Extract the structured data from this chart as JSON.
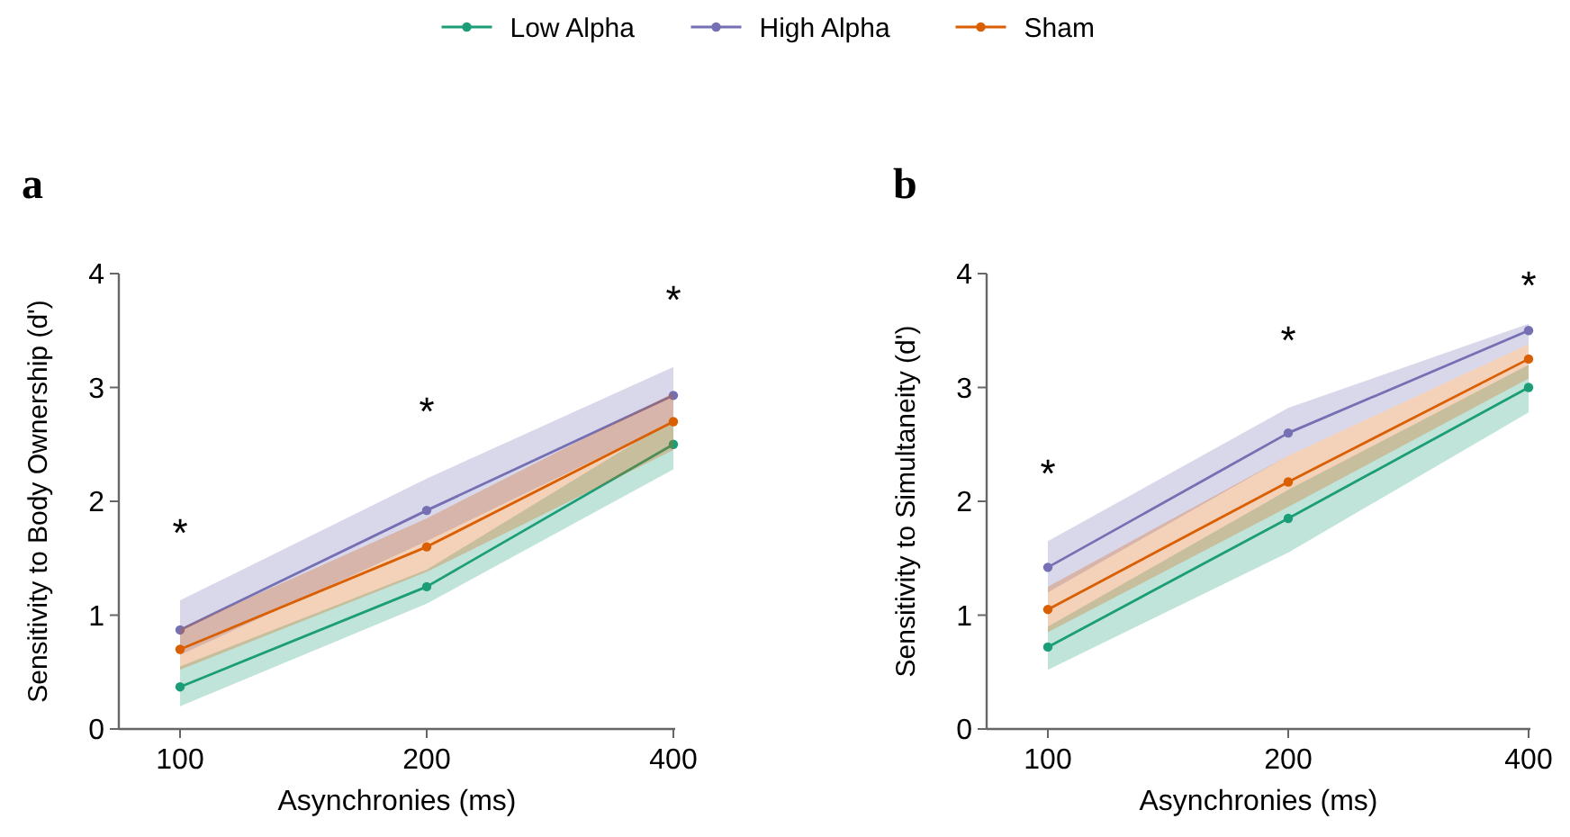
{
  "chart_data": [
    {
      "type": "line",
      "title": "a",
      "xlabel": "Asynchronies (ms)",
      "ylabel": "Sensitivity to Body Ownership (d')",
      "categories": [
        "100",
        "200",
        "400"
      ],
      "ylim": [
        0,
        4
      ],
      "yticks": [
        0,
        1,
        2,
        3,
        4
      ],
      "marker": "circle",
      "legend": "top",
      "grid": false,
      "series": [
        {
          "name": "Low Alpha",
          "color": "#1b9e77",
          "values": [
            0.37,
            1.25,
            2.5
          ],
          "lower": [
            0.2,
            1.1,
            2.28
          ],
          "upper": [
            0.55,
            1.4,
            2.72
          ]
        },
        {
          "name": "High Alpha",
          "color": "#7570b3",
          "values": [
            0.87,
            1.92,
            2.93
          ],
          "lower": [
            0.65,
            1.65,
            2.7
          ],
          "upper": [
            1.13,
            2.2,
            3.18
          ]
        },
        {
          "name": "Sham",
          "color": "#d95f02",
          "values": [
            0.7,
            1.6,
            2.7
          ],
          "lower": [
            0.52,
            1.38,
            2.45
          ],
          "upper": [
            0.88,
            1.85,
            2.95
          ]
        }
      ],
      "annotations": [
        "*",
        "*",
        "*"
      ]
    },
    {
      "type": "line",
      "title": "b",
      "xlabel": "Asynchronies (ms)",
      "ylabel": "Sensitivity to Simultaneity (d')",
      "categories": [
        "100",
        "200",
        "400"
      ],
      "ylim": [
        0,
        4
      ],
      "yticks": [
        0,
        1,
        2,
        3,
        4
      ],
      "marker": "circle",
      "grid": false,
      "series": [
        {
          "color": "#1b9e77",
          "values": [
            0.72,
            1.85,
            3.0
          ],
          "lower": [
            0.52,
            1.55,
            2.78
          ],
          "upper": [
            0.9,
            2.1,
            3.2
          ]
        },
        {
          "color": "#7570b3",
          "values": [
            1.42,
            2.6,
            3.5
          ],
          "lower": [
            1.2,
            2.4,
            3.38
          ],
          "upper": [
            1.65,
            2.82,
            3.56
          ]
        },
        {
          "color": "#d95f02",
          "values": [
            1.05,
            2.17,
            3.25
          ],
          "lower": [
            0.85,
            1.95,
            3.08
          ],
          "upper": [
            1.25,
            2.4,
            3.38
          ]
        }
      ],
      "annotations": [
        "*",
        "*",
        "*"
      ]
    }
  ]
}
